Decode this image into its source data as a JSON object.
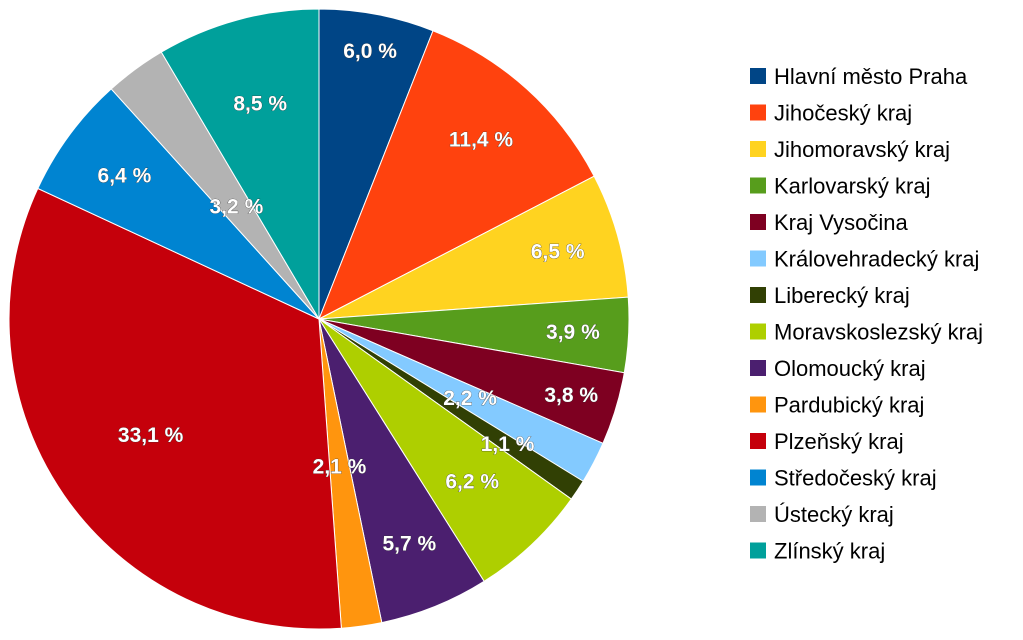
{
  "chart_data": {
    "type": "pie",
    "title": "",
    "legend_position": "right",
    "start_angle_deg": 0,
    "direction": "clockwise",
    "series": [
      {
        "name": "Hlavní město Praha",
        "value": 6.0,
        "label": "6,0 %",
        "color": "#004586"
      },
      {
        "name": "Jihočeský kraj",
        "value": 11.4,
        "label": "11,4 %",
        "color": "#ff420e"
      },
      {
        "name": "Jihomoravský kraj",
        "value": 6.5,
        "label": "6,5 %",
        "color": "#ffd320"
      },
      {
        "name": "Karlovarský kraj",
        "value": 3.9,
        "label": "3,9 %",
        "color": "#579d1c"
      },
      {
        "name": "Kraj Vysočina",
        "value": 3.8,
        "label": "3,8 %",
        "color": "#7e0021"
      },
      {
        "name": "Královehradecký kraj",
        "value": 2.2,
        "label": "2,2 %",
        "color": "#83caff"
      },
      {
        "name": "Liberecký kraj",
        "value": 1.1,
        "label": "1,1 %",
        "color": "#314004"
      },
      {
        "name": "Moravskoslezský kraj",
        "value": 6.2,
        "label": "6,2 %",
        "color": "#aecf00"
      },
      {
        "name": "Olomoucký kraj",
        "value": 5.7,
        "label": "5,7 %",
        "color": "#4b1f6f"
      },
      {
        "name": "Pardubický kraj",
        "value": 2.1,
        "label": "2,1 %",
        "color": "#ff950e"
      },
      {
        "name": "Plzeňský kraj",
        "value": 33.1,
        "label": "33,1 %",
        "color": "#c5000b"
      },
      {
        "name": "Středočeský kraj",
        "value": 6.4,
        "label": "6,4 %",
        "color": "#0084d1"
      },
      {
        "name": "Ústecký kraj",
        "value": 3.2,
        "label": "3,2 %",
        "color": "#b3b3b3"
      },
      {
        "name": "Zlínský kraj",
        "value": 8.5,
        "label": "8,5 %",
        "color": "#00a09b"
      }
    ]
  }
}
